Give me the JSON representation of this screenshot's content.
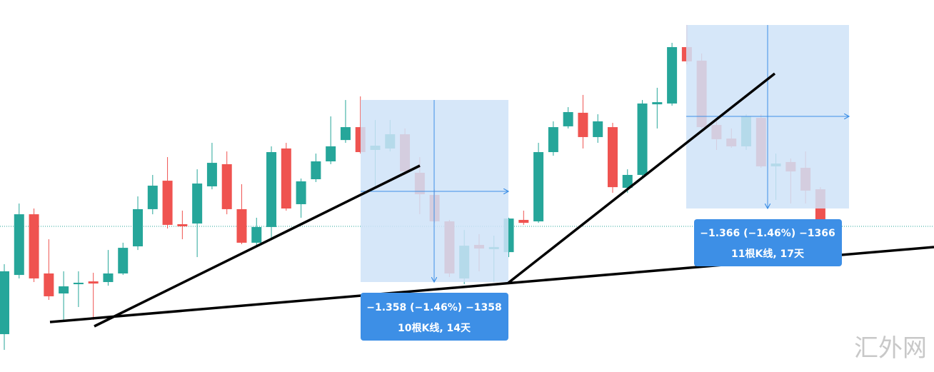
{
  "chart_data": {
    "type": "candlestick",
    "up_color": "#26a69a",
    "down_color": "#ef5350",
    "ylim": [
      90.974,
      93.745
    ],
    "open": [
      91.256,
      91.697,
      92.149,
      91.708,
      91.559,
      91.628,
      91.649,
      91.644,
      91.708,
      91.91,
      92.187,
      92.399,
      92.075,
      92.08,
      92.357,
      92.522,
      92.187,
      91.937,
      92.054,
      92.639,
      92.224,
      92.41,
      92.543,
      92.702,
      92.798,
      92.628,
      92.639,
      92.745,
      92.458,
      92.293,
      92.096,
      91.671,
      91.921,
      91.889,
      91.867,
      92.107,
      92.096,
      92.612,
      92.804,
      92.905,
      92.724,
      92.798,
      92.346,
      92.442,
      92.968,
      92.974,
      93.394,
      93.293,
      92.814,
      92.713,
      92.655,
      92.867,
      92.506,
      92.538,
      92.495,
      92.335
    ],
    "high": [
      91.777,
      92.229,
      92.192,
      91.963,
      91.724,
      91.724,
      91.713,
      91.883,
      91.937,
      92.282,
      92.442,
      92.575,
      92.176,
      92.484,
      92.681,
      92.617,
      92.373,
      92.123,
      92.655,
      92.681,
      92.415,
      92.601,
      92.878,
      93.0,
      93.027,
      92.851,
      92.851,
      92.788,
      92.575,
      92.335,
      92.107,
      92.032,
      92.0,
      91.99,
      92.123,
      92.176,
      92.681,
      92.841,
      92.947,
      93.038,
      92.894,
      92.83,
      92.484,
      93.0,
      93.091,
      93.426,
      93.559,
      93.346,
      92.867,
      92.788,
      92.894,
      92.894,
      92.601,
      92.564,
      92.617,
      92.351
    ],
    "low": [
      91.139,
      91.671,
      91.644,
      91.511,
      91.351,
      91.458,
      91.362,
      91.617,
      91.697,
      91.883,
      92.149,
      92.043,
      91.963,
      91.83,
      92.335,
      92.149,
      91.926,
      91.91,
      91.963,
      92.176,
      92.123,
      92.389,
      92.522,
      92.681,
      92.601,
      92.351,
      92.617,
      92.442,
      92.149,
      92.085,
      91.681,
      91.628,
      91.724,
      91.644,
      91.83,
      92.07,
      92.085,
      92.585,
      92.788,
      92.639,
      92.681,
      92.309,
      92.309,
      92.426,
      92.788,
      92.958,
      93.266,
      92.788,
      92.628,
      92.644,
      92.628,
      92.495,
      92.256,
      92.229,
      92.229,
      92.032
    ],
    "close": [
      91.724,
      92.149,
      91.671,
      91.538,
      91.612,
      91.639,
      91.633,
      91.708,
      91.899,
      92.187,
      92.362,
      92.07,
      92.059,
      92.378,
      92.532,
      92.187,
      91.937,
      92.054,
      92.612,
      92.192,
      92.394,
      92.543,
      92.655,
      92.798,
      92.612,
      92.66,
      92.745,
      92.468,
      92.298,
      92.096,
      91.708,
      91.915,
      91.894,
      91.905,
      92.117,
      92.085,
      92.612,
      92.798,
      92.91,
      92.724,
      92.841,
      92.351,
      92.442,
      92.974,
      92.984,
      93.394,
      93.288,
      92.798,
      92.708,
      92.655,
      92.878,
      92.506,
      92.527,
      92.468,
      92.325,
      92.043
    ],
    "price_line": 92.059,
    "measurements": [
      {
        "change": "−1.358 (−1.46%) −1358",
        "span": "10根K线, 14天"
      },
      {
        "change": "−1.366 (−1.46%) −1366",
        "span": "11根K线, 17天"
      }
    ],
    "watermark": "汇外网"
  }
}
